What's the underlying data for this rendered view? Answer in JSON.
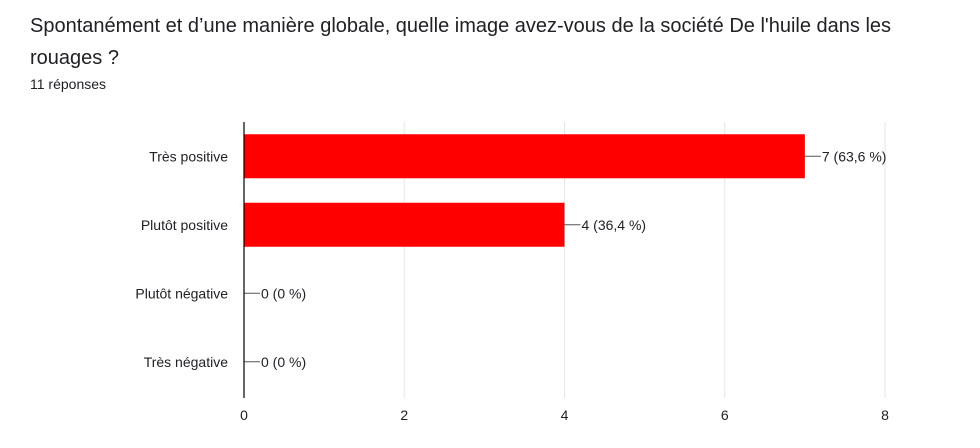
{
  "question": "Spontanément et d’une manière globale, quelle image avez-vous de la société De l'huile dans les rouages ?",
  "responses_label": "11 réponses",
  "colors": {
    "bar": "#ff0000",
    "grid": "#e6e6e6",
    "axis": "#000000",
    "text": "#202124"
  },
  "chart_data": {
    "type": "bar",
    "orientation": "horizontal",
    "categories": [
      "Très positive",
      "Plutôt positive",
      "Plutôt négative",
      "Très négative"
    ],
    "values": [
      7,
      4,
      0,
      0
    ],
    "value_labels": [
      "7 (63,6 %)",
      "4 (36,4 %)",
      "0 (0 %)",
      "0 (0 %)"
    ],
    "xlim": [
      0,
      8
    ],
    "xticks": [
      0,
      2,
      4,
      6,
      8
    ],
    "grid": true
  }
}
